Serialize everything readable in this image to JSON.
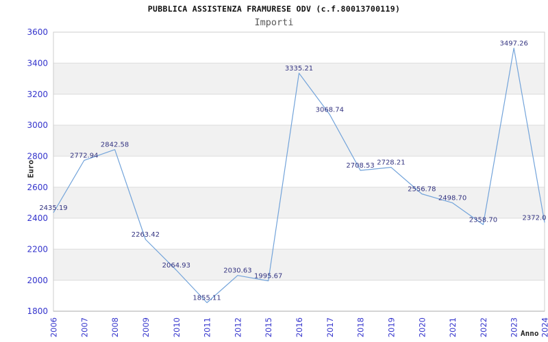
{
  "chart_data": {
    "type": "line",
    "title": "PUBBLICA ASSISTENZA FRAMURESE ODV (c.f.80013700119)",
    "subtitle": "Importi",
    "xlabel": "Anno",
    "ylabel": "Euro",
    "categories": [
      "2006",
      "2007",
      "2008",
      "2009",
      "2010",
      "2011",
      "2012",
      "2015",
      "2016",
      "2017",
      "2018",
      "2019",
      "2020",
      "2021",
      "2022",
      "2023",
      "2024"
    ],
    "values": [
      2435.19,
      2772.94,
      2842.58,
      2263.42,
      2064.93,
      1855.11,
      2030.63,
      1995.67,
      3335.21,
      3068.74,
      2708.53,
      2728.21,
      2556.78,
      2498.7,
      2358.7,
      3497.26,
      2372.0
    ],
    "point_labels": [
      "2435.19",
      "2772.94",
      "2842.58",
      "2263.42",
      "2064.93",
      "1855.11",
      "2030.63",
      "1995.67",
      "3335.21",
      "3068.74",
      "2708.53",
      "2728.21",
      "2556.78",
      "2498.70",
      "2358.70",
      "3497.26",
      "2372.0"
    ],
    "ylim": [
      1800,
      3600
    ],
    "ytick_step": 200,
    "ytick_labels": [
      "3600",
      "3400",
      "3200",
      "3000",
      "2800",
      "2600",
      "2400",
      "2200",
      "2000",
      "1800"
    ],
    "grid": "horizontal gridlines every 200 with alternating white/gray bands",
    "legend": "none",
    "colors": {
      "line": "#72a3da",
      "point_label": "#333380",
      "tick_label": "#3333cc",
      "band": "#f1f1f1",
      "grid": "#dcdcdc",
      "border": "#cccccc",
      "axis": "#aaaaaa",
      "title": "#111111",
      "subtitle": "#575757",
      "axis_title": "#222222"
    }
  }
}
